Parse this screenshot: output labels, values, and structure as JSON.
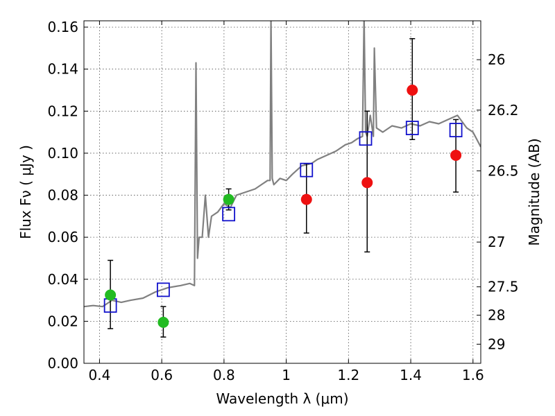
{
  "chart_data": {
    "type": "scatter",
    "xlabel": "Wavelength  λ (μm)",
    "ylabel": "Flux  Fν  ( μJy )",
    "ylabel_right": "Magnitude (AB)",
    "xlim": [
      0.35,
      1.625
    ],
    "ylim": [
      0.0,
      0.163
    ],
    "grid": true,
    "x_ticks": [
      {
        "value": 0.4,
        "label": "0.4"
      },
      {
        "value": 0.6,
        "label": "0.6"
      },
      {
        "value": 0.8,
        "label": "0.8"
      },
      {
        "value": 1.0,
        "label": "1"
      },
      {
        "value": 1.2,
        "label": "1.2"
      },
      {
        "value": 1.4,
        "label": "1.4"
      },
      {
        "value": 1.6,
        "label": "1.6"
      }
    ],
    "y_ticks": [
      {
        "value": 0.0,
        "label": "0.00"
      },
      {
        "value": 0.02,
        "label": "0.02"
      },
      {
        "value": 0.04,
        "label": "0.04"
      },
      {
        "value": 0.06,
        "label": "0.06"
      },
      {
        "value": 0.08,
        "label": "0.08"
      },
      {
        "value": 0.1,
        "label": "0.10"
      },
      {
        "value": 0.12,
        "label": "0.12"
      },
      {
        "value": 0.14,
        "label": "0.14"
      },
      {
        "value": 0.16,
        "label": "0.16"
      }
    ],
    "right_ticks": [
      {
        "flux": 0.1445,
        "label": "26"
      },
      {
        "flux": 0.1205,
        "label": "26.2"
      },
      {
        "flux": 0.0916,
        "label": "26.5"
      },
      {
        "flux": 0.0577,
        "label": "27"
      },
      {
        "flux": 0.0364,
        "label": "27.5"
      },
      {
        "flux": 0.0229,
        "label": "28"
      },
      {
        "flux": 0.0091,
        "label": "29"
      }
    ],
    "colors": {
      "model": "#808080",
      "green": "#22bb22",
      "red": "#ee1111",
      "box": "#1111cc",
      "errorbar": "#000000"
    },
    "series": [
      {
        "kind": "model-spectrum",
        "x": [
          0.35,
          0.38,
          0.41,
          0.44,
          0.47,
          0.5,
          0.54,
          0.58,
          0.62,
          0.66,
          0.69,
          0.705,
          0.71,
          0.715,
          0.72,
          0.73,
          0.74,
          0.75,
          0.76,
          0.78,
          0.8,
          0.82,
          0.84,
          0.86,
          0.88,
          0.9,
          0.92,
          0.94,
          0.948,
          0.951,
          0.955,
          0.96,
          0.98,
          1.0,
          1.02,
          1.05,
          1.08,
          1.1,
          1.13,
          1.16,
          1.19,
          1.21,
          1.23,
          1.245,
          1.25,
          1.255,
          1.26,
          1.27,
          1.28,
          1.283,
          1.29,
          1.31,
          1.34,
          1.37,
          1.4,
          1.43,
          1.46,
          1.49,
          1.52,
          1.55,
          1.58,
          1.6,
          1.625
        ],
        "y": [
          0.027,
          0.0275,
          0.027,
          0.03,
          0.029,
          0.03,
          0.031,
          0.034,
          0.036,
          0.037,
          0.038,
          0.037,
          0.143,
          0.05,
          0.06,
          0.06,
          0.08,
          0.06,
          0.07,
          0.072,
          0.076,
          0.074,
          0.08,
          0.081,
          0.082,
          0.083,
          0.085,
          0.087,
          0.087,
          0.165,
          0.088,
          0.085,
          0.088,
          0.087,
          0.09,
          0.094,
          0.095,
          0.097,
          0.099,
          0.101,
          0.104,
          0.105,
          0.107,
          0.108,
          0.165,
          0.11,
          0.108,
          0.118,
          0.108,
          0.15,
          0.112,
          0.11,
          0.113,
          0.112,
          0.114,
          0.113,
          0.115,
          0.114,
          0.116,
          0.118,
          0.112,
          0.11,
          0.103
        ]
      },
      {
        "kind": "green-points",
        "x": [
          0.435,
          0.605,
          0.815
        ],
        "y": [
          0.0325,
          0.0195,
          0.078
        ],
        "err_low": [
          0.016,
          0.007,
          0.005
        ],
        "err_high": [
          0.0165,
          0.0075,
          0.005
        ]
      },
      {
        "kind": "red-points",
        "x": [
          1.065,
          1.26,
          1.405,
          1.545
        ],
        "y": [
          0.078,
          0.086,
          0.13,
          0.099
        ],
        "err_low": [
          0.016,
          0.033,
          0.0235,
          0.0175
        ],
        "err_high": [
          0.017,
          0.034,
          0.0245,
          0.017
        ]
      },
      {
        "kind": "model-photometry-boxes",
        "x": [
          0.435,
          0.605,
          0.815,
          1.065,
          1.255,
          1.405,
          1.545
        ],
        "y": [
          0.0275,
          0.035,
          0.071,
          0.092,
          0.107,
          0.112,
          0.111
        ]
      }
    ]
  }
}
